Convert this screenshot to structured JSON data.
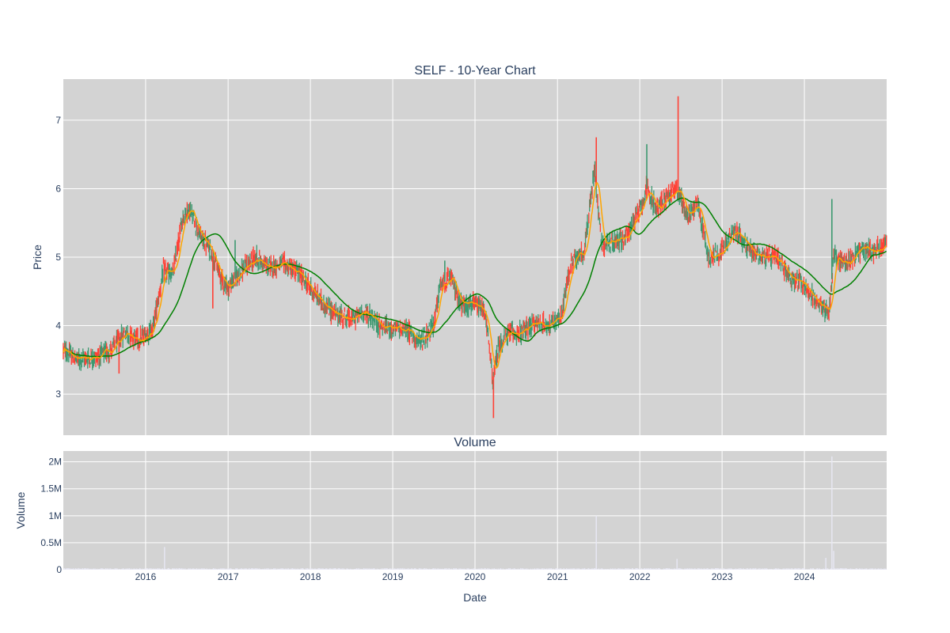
{
  "chart_data": {
    "type": "candlestick",
    "title": "SELF - 10-Year Chart",
    "ylabel": "Price",
    "xlabel": "Date",
    "volume_title": "Volume",
    "volume_ylabel": "Volume",
    "x_range": [
      "2015-01-01",
      "2024-12-31"
    ],
    "price_range": [
      2.4,
      7.6
    ],
    "price_ticks": [
      3,
      4,
      5,
      6,
      7
    ],
    "volume_range": [
      0,
      2200000
    ],
    "volume_ticks": [
      0,
      500000,
      1000000,
      1500000,
      2000000
    ],
    "volume_tick_labels": [
      "0",
      "0.5M",
      "1M",
      "1.5M",
      "2M"
    ],
    "year_ticks": [
      "2016",
      "2017",
      "2018",
      "2019",
      "2020",
      "2021",
      "2022",
      "2023",
      "2024"
    ],
    "colors": {
      "plot_bg": "#d3d3d3",
      "grid": "#ffffff",
      "up": "#3d9970",
      "down": "#ff4136",
      "ma_short": "#ffa500",
      "ma_long": "#008000",
      "volume": "#e8e8f4"
    },
    "price_path": [
      [
        "2015-01-01",
        3.65
      ],
      [
        "2015-03-01",
        3.5
      ],
      [
        "2015-06-01",
        3.55
      ],
      [
        "2015-08-01",
        3.65
      ],
      [
        "2015-10-01",
        3.9
      ],
      [
        "2015-12-01",
        3.8
      ],
      [
        "2016-02-01",
        3.95
      ],
      [
        "2016-03-20",
        4.8
      ],
      [
        "2016-05-01",
        4.75
      ],
      [
        "2016-06-15",
        5.6
      ],
      [
        "2016-07-15",
        5.7
      ],
      [
        "2016-09-01",
        5.3
      ],
      [
        "2016-10-15",
        5.1
      ],
      [
        "2016-12-01",
        4.7
      ],
      [
        "2017-01-01",
        4.55
      ],
      [
        "2017-03-01",
        4.8
      ],
      [
        "2017-05-01",
        5.0
      ],
      [
        "2017-07-01",
        4.85
      ],
      [
        "2017-09-01",
        4.9
      ],
      [
        "2017-11-01",
        4.8
      ],
      [
        "2018-01-01",
        4.55
      ],
      [
        "2018-03-01",
        4.3
      ],
      [
        "2018-05-01",
        4.15
      ],
      [
        "2018-07-01",
        4.1
      ],
      [
        "2018-09-01",
        4.2
      ],
      [
        "2018-11-01",
        4.0
      ],
      [
        "2019-01-01",
        3.95
      ],
      [
        "2019-03-01",
        3.95
      ],
      [
        "2019-05-01",
        3.75
      ],
      [
        "2019-07-01",
        4.0
      ],
      [
        "2019-08-01",
        4.6
      ],
      [
        "2019-09-15",
        4.7
      ],
      [
        "2019-11-01",
        4.3
      ],
      [
        "2020-01-01",
        4.3
      ],
      [
        "2020-02-15",
        4.2
      ],
      [
        "2020-03-20",
        3.2
      ],
      [
        "2020-04-15",
        3.7
      ],
      [
        "2020-06-01",
        3.9
      ],
      [
        "2020-08-01",
        3.9
      ],
      [
        "2020-10-01",
        4.05
      ],
      [
        "2020-12-01",
        4.0
      ],
      [
        "2021-01-15",
        4.1
      ],
      [
        "2021-03-01",
        4.9
      ],
      [
        "2021-05-01",
        5.1
      ],
      [
        "2021-06-15",
        6.3
      ],
      [
        "2021-07-15",
        5.2
      ],
      [
        "2021-09-01",
        5.2
      ],
      [
        "2021-11-01",
        5.3
      ],
      [
        "2022-01-01",
        5.7
      ],
      [
        "2022-02-01",
        6.0
      ],
      [
        "2022-03-15",
        5.7
      ],
      [
        "2022-05-01",
        5.9
      ],
      [
        "2022-06-15",
        6.0
      ],
      [
        "2022-08-01",
        5.6
      ],
      [
        "2022-09-15",
        5.8
      ],
      [
        "2022-11-01",
        5.0
      ],
      [
        "2023-01-01",
        5.1
      ],
      [
        "2023-03-01",
        5.4
      ],
      [
        "2023-05-01",
        5.1
      ],
      [
        "2023-07-01",
        5.0
      ],
      [
        "2023-09-01",
        5.0
      ],
      [
        "2023-11-01",
        4.7
      ],
      [
        "2024-01-01",
        4.6
      ],
      [
        "2024-03-01",
        4.3
      ],
      [
        "2024-04-20",
        4.2
      ],
      [
        "2024-05-10",
        5.0
      ],
      [
        "2024-07-01",
        4.9
      ],
      [
        "2024-09-01",
        5.1
      ],
      [
        "2024-11-01",
        5.1
      ],
      [
        "2024-12-31",
        5.2
      ]
    ],
    "price_spikes": [
      [
        "2015-09-05",
        3.3,
        "low"
      ],
      [
        "2016-10-25",
        4.25,
        "low"
      ],
      [
        "2017-02-01",
        5.25,
        "high"
      ],
      [
        "2019-08-20",
        4.95,
        "high"
      ],
      [
        "2020-03-23",
        2.65,
        "low"
      ],
      [
        "2021-06-22",
        6.75,
        "high"
      ],
      [
        "2022-02-01",
        6.65,
        "high"
      ],
      [
        "2022-06-20",
        7.35,
        "high"
      ],
      [
        "2024-05-02",
        5.85,
        "high"
      ]
    ],
    "volume_spikes": [
      [
        "2016-03-25",
        420000
      ],
      [
        "2021-06-22",
        1000000
      ],
      [
        "2022-06-15",
        200000
      ],
      [
        "2024-04-05",
        220000
      ],
      [
        "2024-05-02",
        2100000
      ],
      [
        "2024-05-10",
        350000
      ]
    ]
  }
}
